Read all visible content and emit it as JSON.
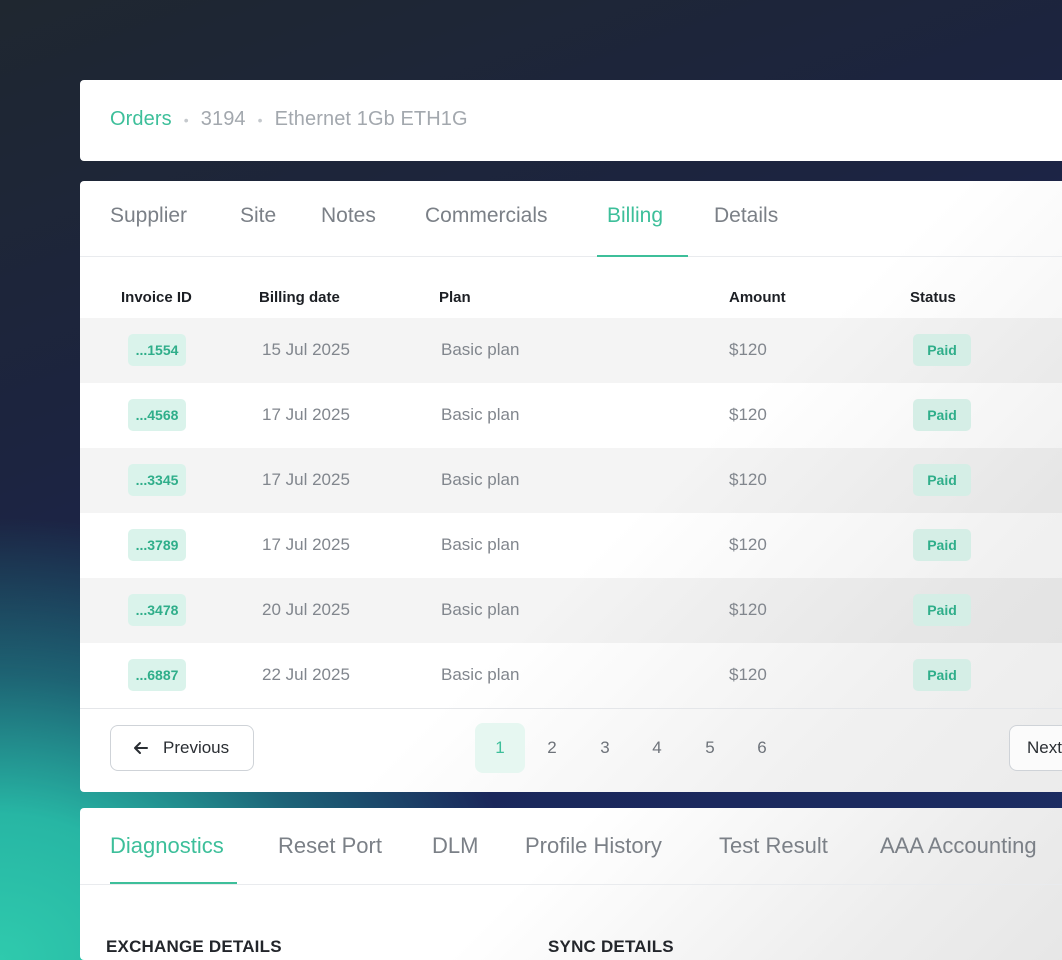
{
  "breadcrumb": {
    "root": "Orders",
    "order_id": "3194",
    "product": "Ethernet 1Gb ETH1G"
  },
  "billing_tabs": [
    "Supplier",
    "Site",
    "Notes",
    "Commercials",
    "Billing",
    "Details"
  ],
  "active_billing_tab": "Billing",
  "table": {
    "headers": [
      "Invoice ID",
      "Billing date",
      "Plan",
      "Amount",
      "Status"
    ],
    "rows": [
      {
        "id": "...1554",
        "date": "15 Jul 2025",
        "plan": "Basic plan",
        "amount": "$120",
        "status": "Paid"
      },
      {
        "id": "...4568",
        "date": "17 Jul 2025",
        "plan": "Basic plan",
        "amount": "$120",
        "status": "Paid"
      },
      {
        "id": "...3345",
        "date": "17 Jul 2025",
        "plan": "Basic plan",
        "amount": "$120",
        "status": "Paid"
      },
      {
        "id": "...3789",
        "date": "17 Jul 2025",
        "plan": "Basic plan",
        "amount": "$120",
        "status": "Paid"
      },
      {
        "id": "...3478",
        "date": "20 Jul 2025",
        "plan": "Basic plan",
        "amount": "$120",
        "status": "Paid"
      },
      {
        "id": "...6887",
        "date": "22 Jul 2025",
        "plan": "Basic plan",
        "amount": "$120",
        "status": "Paid"
      }
    ]
  },
  "pagination": {
    "previous_label": "Previous",
    "next_label": "Next",
    "pages": [
      "1",
      "2",
      "3",
      "4",
      "5",
      "6"
    ],
    "current_page": "1"
  },
  "diagnostics_tabs": [
    "Diagnostics",
    "Reset Port",
    "DLM",
    "Profile History",
    "Test Result",
    "AAA Accounting"
  ],
  "active_diagnostics_tab": "Diagnostics",
  "sections": {
    "exchange": "EXCHANGE DETAILS",
    "sync": "SYNC DETAILS"
  },
  "colors": {
    "accent": "#3dbf9a",
    "badge_bg": "#daf3eb"
  }
}
